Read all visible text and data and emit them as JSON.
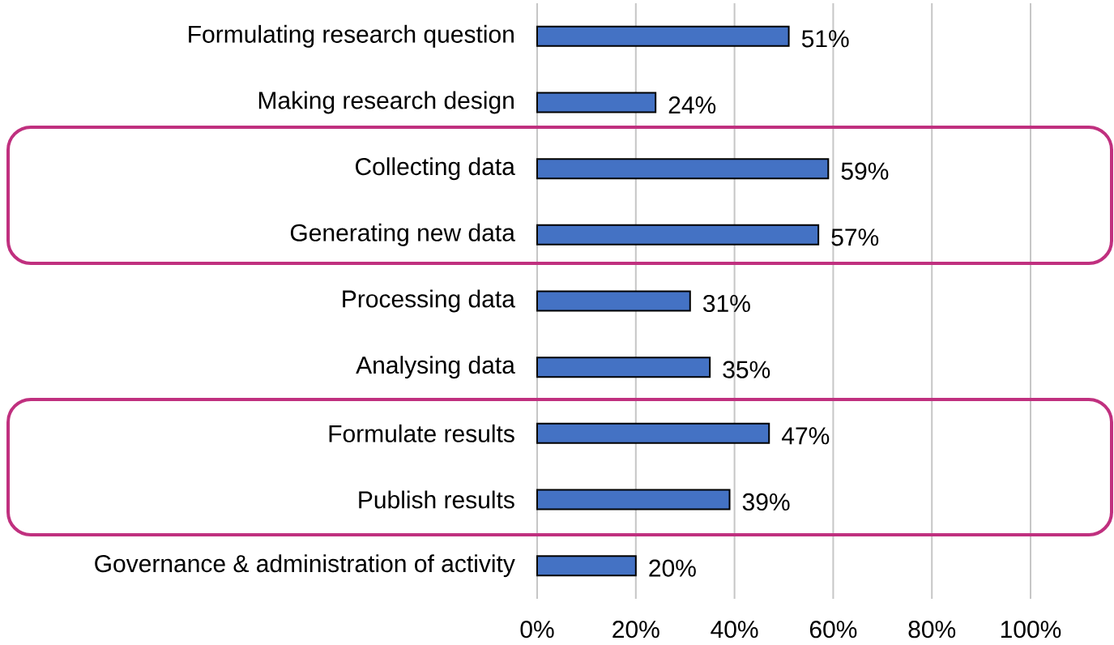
{
  "chart_data": {
    "type": "bar",
    "orientation": "horizontal",
    "categories": [
      "Formulating research question",
      "Making research design",
      "Collecting data",
      "Generating new data",
      "Processing data",
      "Analysing data",
      "Formulate results",
      "Publish results",
      "Governance & administration of activity"
    ],
    "values": [
      51,
      24,
      59,
      57,
      31,
      35,
      47,
      39,
      20
    ],
    "value_labels": [
      "51%",
      "24%",
      "59%",
      "57%",
      "31%",
      "35%",
      "47%",
      "39%",
      "20%"
    ],
    "color": "#4472c4",
    "xlim": [
      0,
      100
    ],
    "xticks": [
      {
        "value": 0,
        "label": "0%"
      },
      {
        "value": 20,
        "label": "20%"
      },
      {
        "value": 40,
        "label": "40%"
      },
      {
        "value": 60,
        "label": "60%"
      },
      {
        "value": 80,
        "label": "80%"
      },
      {
        "value": 100,
        "label": "100%"
      }
    ],
    "grid": "x"
  }
}
